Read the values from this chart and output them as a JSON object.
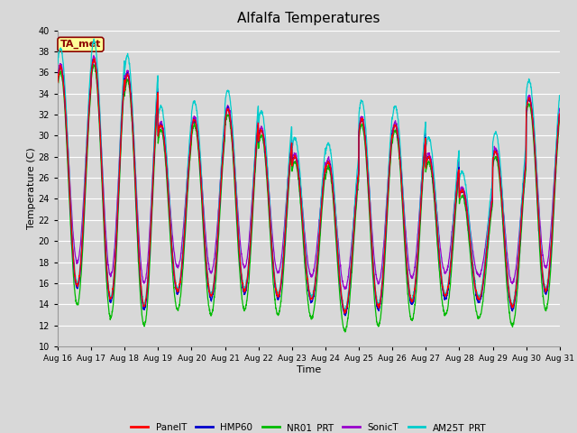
{
  "title": "Alfalfa Temperatures",
  "xlabel": "Time",
  "ylabel": "Temperature (C)",
  "ylim": [
    10,
    40
  ],
  "annotation_label": "TA_met",
  "annotation_color": "#8B0000",
  "annotation_bg": "#FFFF99",
  "annotation_edge": "#8B0000",
  "bg_color": "#D8D8D8",
  "grid_color": "#FFFFFF",
  "series_colors": {
    "PanelT": "#FF0000",
    "HMP60": "#0000CC",
    "NR01_PRT": "#00BB00",
    "SonicT": "#9900CC",
    "AM25T_PRT": "#00CCCC"
  },
  "start_day": 16,
  "end_day": 31,
  "n_per_day": 144,
  "daily_peaks": [
    36.5,
    37.2,
    35.8,
    31.0,
    31.5,
    32.5,
    30.5,
    28.0,
    27.5,
    31.5,
    31.0,
    28.0,
    24.8,
    28.5,
    33.5
  ],
  "daily_mins": [
    15.5,
    14.2,
    13.5,
    15.0,
    14.5,
    15.0,
    14.5,
    14.2,
    13.0,
    13.5,
    14.0,
    14.5,
    14.2,
    13.5,
    15.0
  ],
  "nr01_peak_adj": -0.5,
  "nr01_min_adj": -1.5,
  "sonic_peak_adj": 0.3,
  "sonic_min_adj": 2.5,
  "am25_peak_adj": 1.8,
  "am25_min_adj": 0.5,
  "panel_peak_adj": 0.0,
  "panel_min_adj": 0.3
}
